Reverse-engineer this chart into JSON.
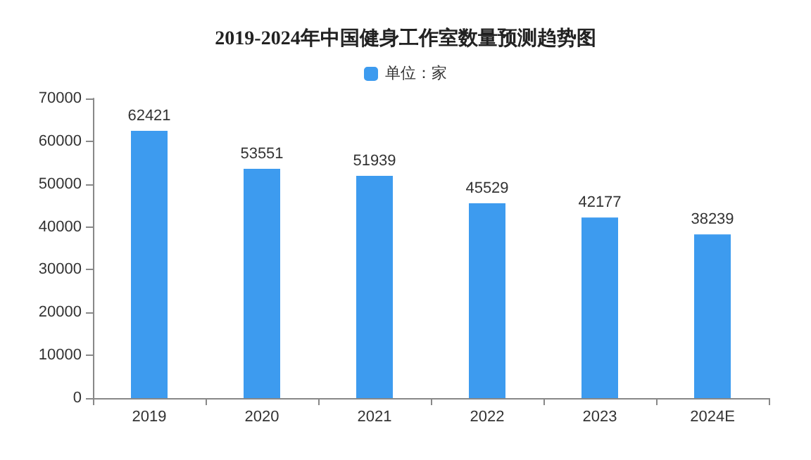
{
  "chart_data": {
    "type": "bar",
    "title": "2019-2024年中国健身工作室数量预测趋势图",
    "categories": [
      "2019",
      "2020",
      "2021",
      "2022",
      "2023",
      "2024E"
    ],
    "series": [
      {
        "name": "单位：家",
        "color": "#3d9bef",
        "values": [
          62421,
          53551,
          51939,
          45529,
          42177,
          38239
        ]
      }
    ],
    "ylim": [
      0,
      70000
    ],
    "yticks": [
      0,
      10000,
      20000,
      30000,
      40000,
      50000,
      60000,
      70000
    ],
    "grid": false,
    "legend": "top",
    "data_labels": true
  }
}
